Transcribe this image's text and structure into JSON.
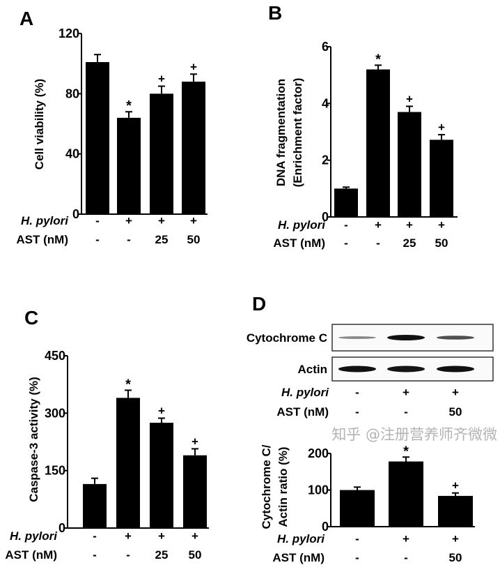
{
  "chart_data": [
    {
      "panel": "A",
      "type": "bar",
      "ylabel": [
        "Cell viability (%)"
      ],
      "ylim": [
        0,
        120
      ],
      "yticks": [
        "0",
        "40",
        "80",
        "120"
      ],
      "ytick_values": [
        0,
        40,
        80,
        120
      ],
      "values": [
        101,
        64,
        80,
        88
      ],
      "errors": [
        5,
        4,
        5,
        5
      ],
      "marks": [
        "",
        "*",
        "+",
        "+"
      ],
      "conditions": [
        {
          "label": "H. pylori",
          "italic": true,
          "values": [
            "-",
            "+",
            "+",
            "+"
          ]
        },
        {
          "label": "AST (nM)",
          "italic": false,
          "values": [
            "-",
            "-",
            "25",
            "50"
          ]
        }
      ]
    },
    {
      "panel": "B",
      "type": "bar",
      "ylabel": [
        "DNA fragmentation",
        "(Enrichment factor)"
      ],
      "ylim": [
        0,
        6
      ],
      "yticks": [
        "0",
        "2",
        "4",
        "6"
      ],
      "ytick_values": [
        0,
        2,
        4,
        6
      ],
      "values": [
        1.0,
        5.2,
        3.7,
        2.72
      ],
      "errors": [
        0.05,
        0.15,
        0.2,
        0.18
      ],
      "marks": [
        "",
        "*",
        "+",
        "+"
      ],
      "conditions": [
        {
          "label": "H. pylori",
          "italic": true,
          "values": [
            "-",
            "+",
            "+",
            "+"
          ]
        },
        {
          "label": "AST (nM)",
          "italic": false,
          "values": [
            "-",
            "-",
            "25",
            "50"
          ]
        }
      ]
    },
    {
      "panel": "C",
      "type": "bar",
      "ylabel": [
        "Caspase-3 activity  (%)"
      ],
      "ylim": [
        0,
        450
      ],
      "yticks": [
        "0",
        "150",
        "300",
        "450"
      ],
      "ytick_values": [
        0,
        150,
        300,
        450
      ],
      "values": [
        115,
        340,
        275,
        190
      ],
      "errors": [
        15,
        20,
        12,
        17
      ],
      "marks": [
        "",
        "*",
        "+",
        "+"
      ],
      "conditions": [
        {
          "label": "H. pylori",
          "italic": true,
          "values": [
            "-",
            "+",
            "+",
            "+"
          ]
        },
        {
          "label": "AST (nM)",
          "italic": false,
          "values": [
            "-",
            "-",
            "25",
            "50"
          ]
        }
      ]
    },
    {
      "panel": "D",
      "type": "bar",
      "ylabel": [
        "Cytochrome C/",
        "Actin ratio (%)"
      ],
      "ylim": [
        0,
        200
      ],
      "yticks": [
        "0",
        "100",
        "200"
      ],
      "ytick_values": [
        0,
        100,
        200
      ],
      "values": [
        100,
        178,
        84
      ],
      "errors": [
        8,
        12,
        8
      ],
      "marks": [
        "",
        "*",
        "+"
      ],
      "conditions": [
        {
          "label": "H. pylori",
          "italic": true,
          "values": [
            "-",
            "+",
            "+"
          ]
        },
        {
          "label": "AST (nM)",
          "italic": false,
          "values": [
            "-",
            "-",
            "50"
          ]
        }
      ]
    }
  ],
  "blot": {
    "rows": [
      {
        "label": "Cytochrome C",
        "intensity": [
          0.3,
          1.0,
          0.6
        ]
      },
      {
        "label": "Actin",
        "intensity": [
          1.0,
          0.92,
          0.95
        ]
      }
    ],
    "conditions": [
      {
        "label": "H. pylori",
        "italic": true,
        "values": [
          "-",
          "+",
          "+"
        ]
      },
      {
        "label": "AST (nM)",
        "italic": false,
        "values": [
          "-",
          "-",
          "50"
        ]
      }
    ]
  },
  "watermark": "知乎 @注册营养师齐微微"
}
